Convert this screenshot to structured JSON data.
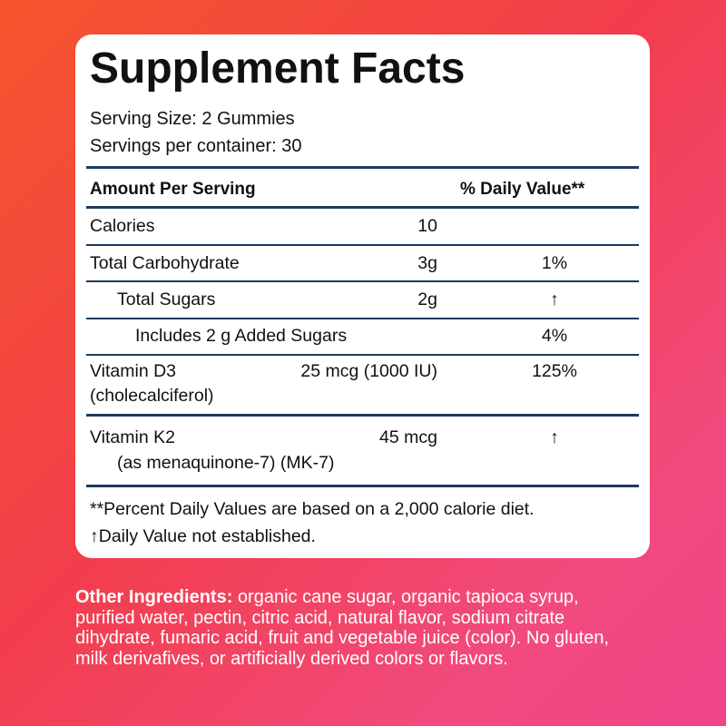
{
  "title": "Supplement Facts",
  "serving_size": "Serving Size: 2 Gummies",
  "servings_per_container": "Servings per container: 30",
  "table": {
    "header": [
      "Amount Per Serving",
      "% Daily Value**"
    ],
    "rows": [
      {
        "name": "Calories",
        "amount": "10"
      },
      {
        "name": "Total Carbohydrate",
        "amount": "3g",
        "dv": "1%"
      },
      {
        "name": "Total Sugars",
        "amount": "2g",
        "dv": "↑"
      },
      {
        "name": "Includes 2 g Added Sugars",
        "dv": "4%"
      },
      {
        "name": "Vitamin D3",
        "amount": "25 mcg (1000 IU)",
        "dv": "125%",
        "detail": "(cholecalciferol)"
      },
      {
        "name": "Vitamin K2",
        "amount": "45 mcg",
        "dv": "↑",
        "detail": "(as menaquinone-7) (MK-7)"
      }
    ]
  },
  "footnotes": [
    "**Percent Daily Values are based on a 2,000 calorie diet.",
    "↑Daily Value not established."
  ],
  "other_ingredients": {
    "label": "Other Ingredients:",
    "text": "organic cane sugar, organic tapioca syrup, purified water, pectin, citric acid, natural flavor, sodium citrate dihydrate, fumaric acid, fruit and vegetable juice (color). No gluten, milk derivafives, or artificially derived colors or flavors."
  }
}
